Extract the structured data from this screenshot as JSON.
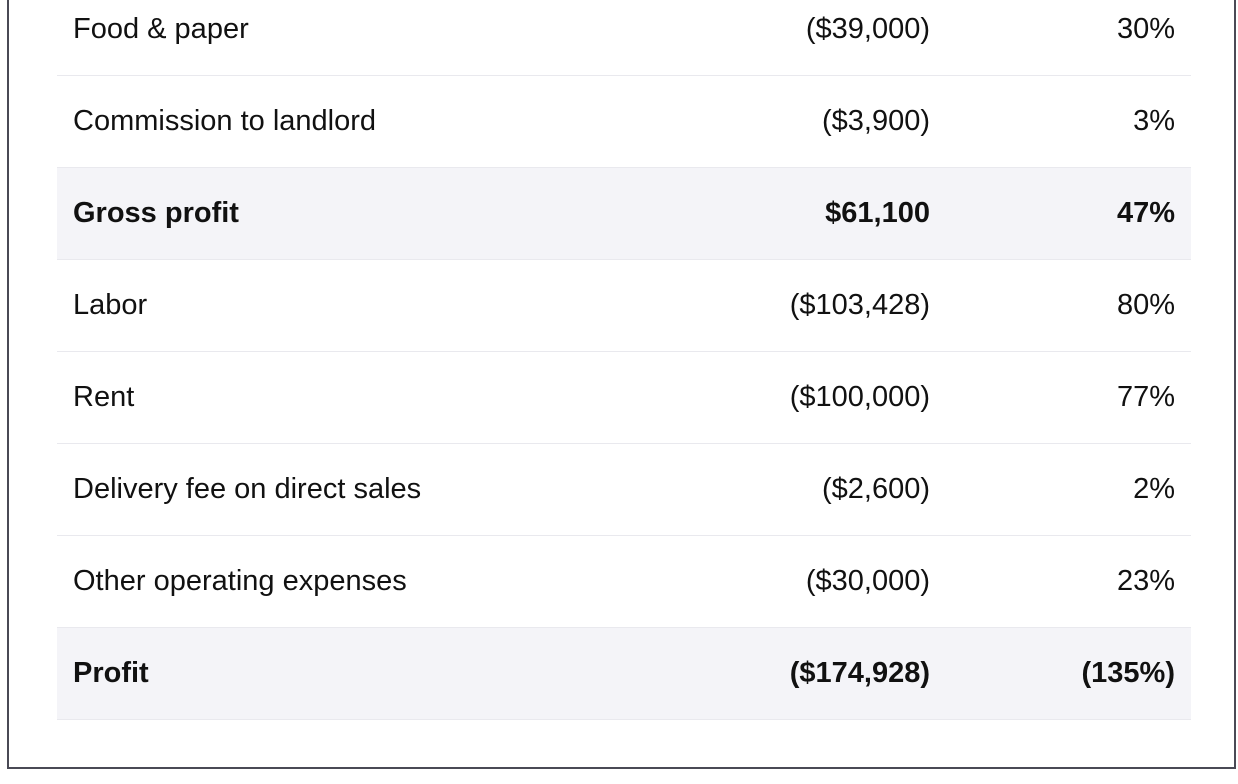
{
  "rows": [
    {
      "label": "Food & paper",
      "amount": "($39,000)",
      "pct": "30%",
      "total": false
    },
    {
      "label": "Commission to landlord",
      "amount": "($3,900)",
      "pct": "3%",
      "total": false
    },
    {
      "label": "Gross profit",
      "amount": "$61,100",
      "pct": "47%",
      "total": true
    },
    {
      "label": "Labor",
      "amount": "($103,428)",
      "pct": "80%",
      "total": false
    },
    {
      "label": "Rent",
      "amount": "($100,000)",
      "pct": "77%",
      "total": false
    },
    {
      "label": "Delivery fee on direct sales",
      "amount": "($2,600)",
      "pct": "2%",
      "total": false
    },
    {
      "label": "Other operating expenses",
      "amount": "($30,000)",
      "pct": "23%",
      "total": false
    },
    {
      "label": "Profit",
      "amount": "($174,928)",
      "pct": "(135%)",
      "total": true
    }
  ]
}
